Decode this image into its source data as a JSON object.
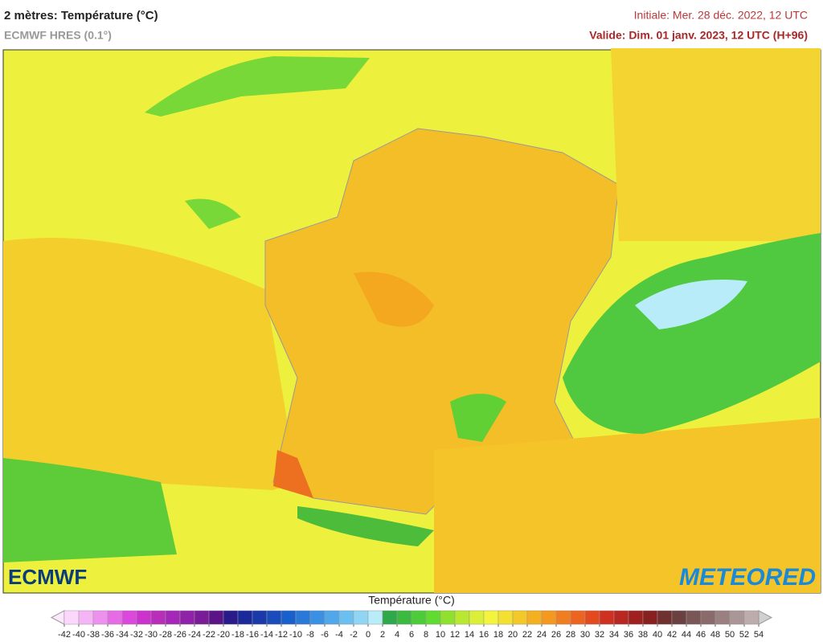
{
  "header": {
    "title": "2 mètres: Température (°C)",
    "subtitle": "ECMWF HRES (0.1°)",
    "initial": "Initiale: Mer. 28 déc. 2022, 12 UTC",
    "valid": "Valide: Dim. 01 janv. 2023, 12 UTC (H+96)"
  },
  "logos": {
    "left": "ECMWF",
    "right": "METEORED"
  },
  "legend": {
    "title": "Température (°C)",
    "ticks": [
      -42,
      -40,
      -38,
      -36,
      -34,
      -32,
      -30,
      -28,
      -26,
      -24,
      -22,
      -20,
      -18,
      -16,
      -14,
      -12,
      -10,
      -8,
      -6,
      -4,
      -2,
      0,
      2,
      4,
      6,
      8,
      10,
      12,
      14,
      16,
      18,
      20,
      22,
      24,
      26,
      28,
      30,
      32,
      34,
      36,
      38,
      40,
      42,
      44,
      46,
      48,
      50,
      52,
      54
    ],
    "colors": [
      "#fcd7fc",
      "#f5b4f5",
      "#ee90ee",
      "#e66ce6",
      "#dc48dc",
      "#cc33cc",
      "#b82eb8",
      "#a328b8",
      "#8f22a8",
      "#7a1c98",
      "#5a1488",
      "#2a1a8a",
      "#1a2a9a",
      "#1a3aaa",
      "#1a4cbc",
      "#1a60cc",
      "#2a78d8",
      "#3a90e2",
      "#50a8ea",
      "#6cc0f0",
      "#90d6f4",
      "#b8ecf8",
      "#2ea84a",
      "#3cba40",
      "#4ccc38",
      "#60dc30",
      "#90e030",
      "#b8e830",
      "#dcef38",
      "#f4f43c",
      "#f4e030",
      "#f4c828",
      "#f4b020",
      "#f49820",
      "#f07e20",
      "#ec6420",
      "#e44a20",
      "#d03020",
      "#b82820",
      "#a02020",
      "#882020",
      "#703030",
      "#6a4040",
      "#7a5656",
      "#8a6a6a",
      "#9a8080",
      "#aa9696",
      "#bcacac"
    ],
    "under_color": "#fde8fd",
    "over_color": "#d0d0d0"
  }
}
